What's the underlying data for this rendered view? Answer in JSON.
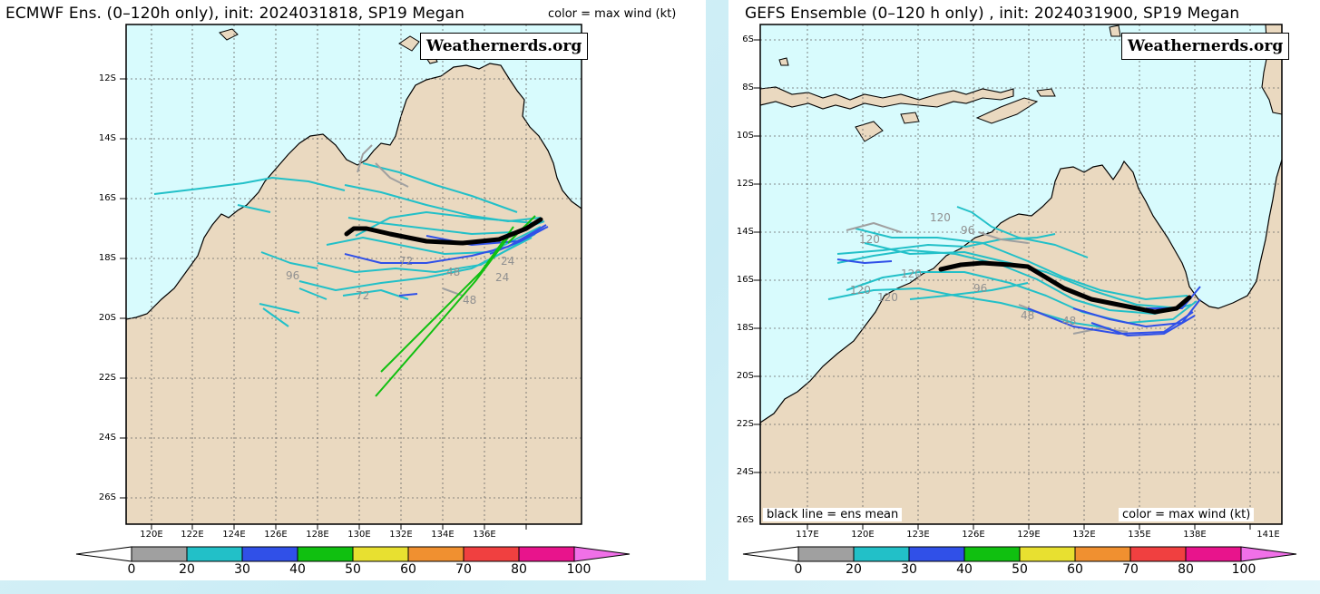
{
  "left": {
    "title": "ECMWF Ens. (0–120h only), init: 2024031818, SP19 Megan",
    "subtitle": "color = max wind (kt)",
    "credit": "Weathernerds.org",
    "lat_labels": [
      "12S",
      "14S",
      "16S",
      "18S",
      "20S",
      "22S",
      "24S",
      "26S"
    ],
    "lon_labels": [
      "120E",
      "122E",
      "124E",
      "126E",
      "128E",
      "130E",
      "132E",
      "134E",
      "136E"
    ],
    "forecast_hour_labels": [
      "96",
      "72",
      "48",
      "24",
      "72",
      "48",
      "24"
    ]
  },
  "right": {
    "title": "GEFS Ensemble (0–120 h only) , init: 2024031900, SP19 Megan",
    "credit": "Weathernerds.org",
    "mean_note": "black line = ens mean",
    "color_note": "color = max wind (kt)",
    "lat_labels": [
      "6S",
      "8S",
      "10S",
      "12S",
      "14S",
      "16S",
      "18S",
      "20S",
      "22S",
      "24S",
      "26S"
    ],
    "lon_labels": [
      "117E",
      "120E",
      "123E",
      "126E",
      "129E",
      "132E",
      "135E",
      "138E",
      "141E"
    ],
    "forecast_hour_labels": [
      "120",
      "120",
      "96",
      "120",
      "120",
      "120",
      "96",
      "48",
      "48"
    ]
  },
  "colorbar": {
    "ticks": [
      "0",
      "20",
      "30",
      "40",
      "50",
      "60",
      "70",
      "80",
      "100"
    ],
    "colors": [
      "#a0a0a0",
      "#22c0c8",
      "#3050e8",
      "#10c010",
      "#e8e030",
      "#f09030",
      "#f04040",
      "#e8148c"
    ],
    "end_low": "#ffffff",
    "end_high": "#f070e8"
  },
  "map_colors": {
    "land": "#ead9c0",
    "ocean": "#d8fbfd"
  }
}
